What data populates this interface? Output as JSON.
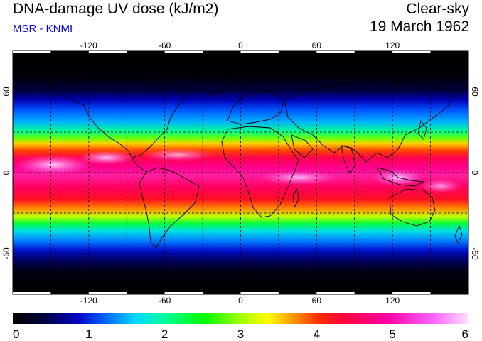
{
  "header": {
    "title": "DNA-damage UV dose (kJ/m2)",
    "subtitle": "MSR - KNMI",
    "condition": "Clear-sky",
    "date": "19 March 1962"
  },
  "colors": {
    "subtitle": "#0000dd",
    "scale": [
      "#000000",
      "#000040",
      "#0000c0",
      "#0060ff",
      "#00d8ff",
      "#00ff90",
      "#00ff00",
      "#a0ff00",
      "#ffff00",
      "#ffa000",
      "#ff3000",
      "#ff0040",
      "#ff00a0",
      "#ff60ff",
      "#ffe0ff"
    ]
  },
  "map": {
    "lon_ticks": [
      "-120",
      "-60",
      "0",
      "60",
      "120"
    ],
    "lat_ticks": [
      "60",
      "0",
      "-60"
    ],
    "grid_lon": [
      -150,
      -120,
      -90,
      -60,
      -30,
      0,
      30,
      60,
      90,
      120,
      150
    ],
    "grid_lat": [
      -60,
      -30,
      0,
      30,
      60
    ]
  },
  "colorbar": {
    "labels": [
      "0",
      "1",
      "2",
      "3",
      "4",
      "5",
      "6"
    ],
    "min": 0,
    "max": 6
  }
}
